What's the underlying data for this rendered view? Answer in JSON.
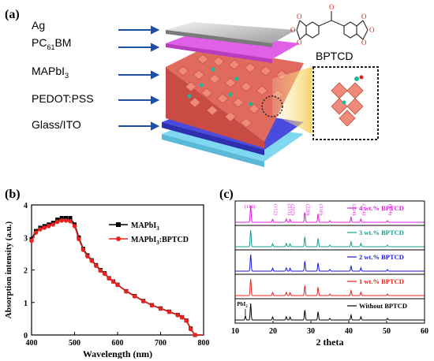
{
  "panels": {
    "a": "(a)",
    "b": "(b)",
    "c": "(c)"
  },
  "device": {
    "layers": [
      {
        "label": "Ag",
        "color": "#c8c8c8"
      },
      {
        "label": "PC",
        "sub": "61",
        "suffix": "BM",
        "color": "#e060e8"
      },
      {
        "label": "MAPbI",
        "sub": "3",
        "suffix": "",
        "color": "#e87070"
      },
      {
        "label": "PEDOT:PSS",
        "color": "#4a4adc"
      },
      {
        "label": "Glass/ITO",
        "color": "#7fd8f0"
      }
    ],
    "molecule_name": "BPTCD"
  },
  "chart_data": [
    {
      "type": "line",
      "xlabel": "Wavelength (nm)",
      "ylabel": "Absorption intensity (a.u.)",
      "xlim": [
        400,
        800
      ],
      "ylim": [
        0,
        4
      ],
      "xticks": [
        400,
        500,
        600,
        700,
        800
      ],
      "yticks": [
        0,
        1,
        2,
        3,
        4
      ],
      "legend_position": "top-right",
      "series": [
        {
          "name": "MAPbI3",
          "legend_main": "MAPbI",
          "legend_sub": "3",
          "legend_suffix": "",
          "color": "#000000",
          "marker": "square",
          "x": [
            400,
            410,
            420,
            430,
            440,
            450,
            460,
            470,
            480,
            490,
            500,
            510,
            520,
            530,
            540,
            550,
            560,
            570,
            580,
            590,
            600,
            620,
            640,
            660,
            680,
            700,
            720,
            740,
            750,
            760,
            770,
            780,
            790,
            800
          ],
          "y": [
            2.95,
            3.2,
            3.3,
            3.35,
            3.4,
            3.45,
            3.55,
            3.6,
            3.6,
            3.6,
            3.4,
            3.0,
            2.65,
            2.45,
            2.3,
            2.15,
            2.0,
            1.9,
            1.75,
            1.65,
            1.55,
            1.35,
            1.2,
            1.05,
            0.92,
            0.82,
            0.72,
            0.62,
            0.55,
            0.45,
            0.2,
            0.0,
            -0.05,
            -0.05
          ]
        },
        {
          "name": "MAPbI3:BPTCD",
          "legend_main": "MAPbI",
          "legend_sub": "3",
          "legend_suffix": ":BPTCD",
          "color": "#e8231f",
          "marker": "circle",
          "x": [
            400,
            410,
            420,
            430,
            440,
            450,
            460,
            470,
            480,
            490,
            500,
            510,
            520,
            530,
            540,
            550,
            560,
            570,
            580,
            590,
            600,
            620,
            640,
            660,
            680,
            700,
            720,
            740,
            750,
            760,
            770,
            780,
            790,
            800
          ],
          "y": [
            2.9,
            3.15,
            3.25,
            3.3,
            3.35,
            3.4,
            3.48,
            3.52,
            3.52,
            3.5,
            3.35,
            2.95,
            2.62,
            2.42,
            2.28,
            2.13,
            1.98,
            1.88,
            1.74,
            1.64,
            1.54,
            1.34,
            1.19,
            1.04,
            0.91,
            0.81,
            0.71,
            0.61,
            0.54,
            0.44,
            0.18,
            0.0,
            -0.05,
            -0.05
          ]
        }
      ]
    },
    {
      "type": "line",
      "xlabel": "2 theta",
      "xlim": [
        10,
        60
      ],
      "xticks": [
        10,
        20,
        30,
        40,
        50,
        60
      ],
      "series": [
        {
          "name": "Without BPTCD",
          "color": "#000000"
        },
        {
          "name": "1 wt.% BPTCD",
          "color": "#e8231f"
        },
        {
          "name": "2 wt.% BPTCD",
          "color": "#1a1adc"
        },
        {
          "name": "3 wt.% BPTCD",
          "color": "#1a9e8a"
        },
        {
          "name": "4 wt.% BPTCD",
          "color": "#e01fe0"
        }
      ],
      "peaks": [
        {
          "x": 12.7,
          "h": 0.25,
          "only_first": true
        },
        {
          "x": 14.1,
          "h": 1.0
        },
        {
          "x": 19.9,
          "h": 0.18
        },
        {
          "x": 23.5,
          "h": 0.2
        },
        {
          "x": 24.5,
          "h": 0.18
        },
        {
          "x": 28.4,
          "h": 0.6
        },
        {
          "x": 31.9,
          "h": 0.5
        },
        {
          "x": 35.0,
          "h": 0.1
        },
        {
          "x": 40.6,
          "h": 0.3
        },
        {
          "x": 43.2,
          "h": 0.2
        },
        {
          "x": 50.2,
          "h": 0.1
        }
      ],
      "peak_labels": [
        {
          "text": "(110)",
          "x": 14.1
        },
        {
          "text": "(112)",
          "x": 19.9
        },
        {
          "text": "(211)",
          "x": 23.5
        },
        {
          "text": "(202)",
          "x": 24.5
        },
        {
          "text": "(220)",
          "x": 28.4
        },
        {
          "text": "(310)",
          "x": 31.9
        },
        {
          "text": "(224)",
          "x": 40.6
        },
        {
          "text": "(314)",
          "x": 43.2
        },
        {
          "text": "(404)",
          "x": 50.2
        }
      ],
      "pbi2_label": "PbI"
    }
  ]
}
